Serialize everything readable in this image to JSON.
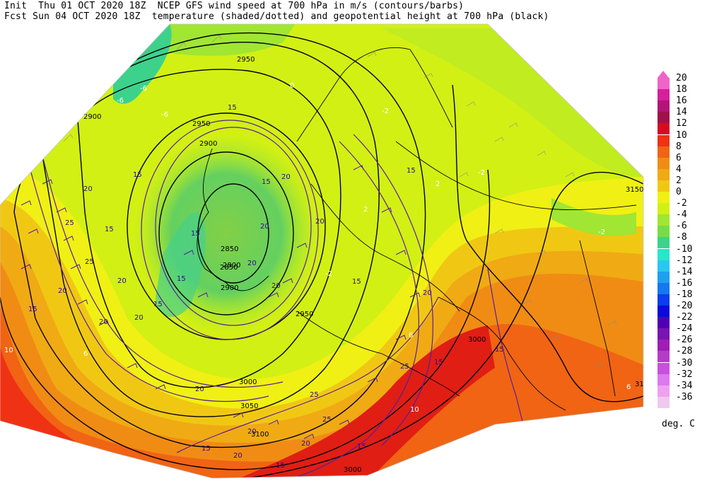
{
  "header": {
    "line1": "Init  Thu 01 OCT 2020 18Z  NCEP GFS wind speed at 700 hPa in m/s (contours/barbs)",
    "line2": "Fcst Sun 04 OCT 2020 18Z  temperature (shaded/dotted) and geopotential height at 700 hPa (black)"
  },
  "legend": {
    "labels": [
      "20",
      "18",
      "16",
      "14",
      "12",
      "10",
      "8",
      "6",
      "4",
      "2",
      "0",
      "-2",
      "-4",
      "-6",
      "-8",
      "-10",
      "-12",
      "-14",
      "-16",
      "-18",
      "-20",
      "-22",
      "-24",
      "-26",
      "-28",
      "-30",
      "-32",
      "-34",
      "-36"
    ],
    "colors": [
      "#f064c8",
      "#d81e9a",
      "#b41478",
      "#a0104a",
      "#d80a1e",
      "#f03214",
      "#f06414",
      "#f08c14",
      "#f0aa14",
      "#f0c814",
      "#f0f014",
      "#d2f014",
      "#a0e632",
      "#78dc46",
      "#3cd28c",
      "#28e6c8",
      "#28c8f0",
      "#1ea0f0",
      "#1478f0",
      "#0a3cf0",
      "#0a0adc",
      "#5000b4",
      "#7814b4",
      "#a01eb4",
      "#b43cc8",
      "#c850dc",
      "#dc78f0",
      "#f0a0f0",
      "#f0c8f0"
    ],
    "units": "deg. C"
  },
  "map": {
    "height_labels": [
      "2950",
      "2900",
      "2950",
      "2900",
      "2850",
      "2800",
      "2850",
      "2900",
      "2950",
      "3000",
      "3000",
      "3050",
      "3100",
      "3150",
      "3000",
      "3150",
      "31"
    ],
    "wind_labels": [
      "15",
      "20",
      "25",
      "15",
      "20",
      "15",
      "20",
      "20",
      "25",
      "20",
      "15",
      "20",
      "15",
      "20",
      "15",
      "20",
      "15",
      "20",
      "20",
      "15",
      "20",
      "25",
      "20",
      "15",
      "20",
      "15",
      "25",
      "15",
      "20",
      "15",
      "20",
      "25",
      "15",
      "15",
      "15"
    ],
    "temp_labels": [
      "-6",
      "-6",
      "-6",
      "-2",
      "0",
      "-2",
      "2",
      "-2",
      "2",
      "6",
      "-2",
      "6",
      "10",
      "10",
      "6"
    ]
  }
}
